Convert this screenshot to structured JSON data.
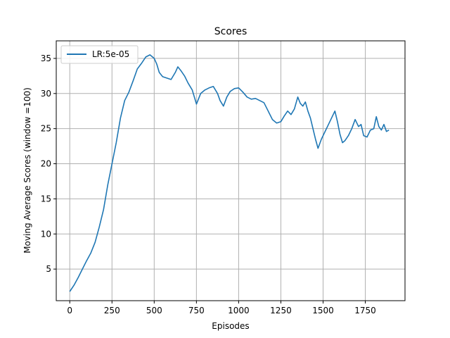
{
  "chart_data": {
    "type": "line",
    "title": "Scores",
    "xlabel": "Episodes",
    "ylabel": "Moving Average Scores (window =100)",
    "xlim": [
      -80,
      1985
    ],
    "ylim": [
      0.5,
      37.5
    ],
    "xticks": [
      0,
      250,
      500,
      750,
      1000,
      1250,
      1500,
      1750
    ],
    "yticks": [
      5,
      10,
      15,
      20,
      25,
      30,
      35
    ],
    "grid": true,
    "legend_position": "top-left",
    "series": [
      {
        "name": "LR:5e-05",
        "color": "#1f77b4",
        "x": [
          0,
          25,
          50,
          75,
          100,
          125,
          150,
          175,
          200,
          225,
          250,
          275,
          300,
          325,
          350,
          375,
          400,
          425,
          450,
          475,
          500,
          515,
          530,
          550,
          575,
          600,
          625,
          640,
          660,
          680,
          700,
          725,
          750,
          775,
          800,
          825,
          850,
          875,
          890,
          910,
          930,
          950,
          975,
          1000,
          1025,
          1050,
          1075,
          1100,
          1125,
          1150,
          1175,
          1200,
          1225,
          1250,
          1270,
          1290,
          1310,
          1330,
          1350,
          1365,
          1380,
          1395,
          1410,
          1425,
          1440,
          1455,
          1470,
          1490,
          1510,
          1530,
          1550,
          1570,
          1585,
          1600,
          1615,
          1630,
          1650,
          1670,
          1690,
          1710,
          1725,
          1740,
          1760,
          1780,
          1800,
          1815,
          1830,
          1845,
          1860,
          1875,
          1890
        ],
        "y": [
          1.8,
          2.7,
          3.8,
          5.0,
          6.2,
          7.3,
          8.8,
          11.0,
          13.5,
          17.0,
          20.0,
          23.0,
          26.5,
          29.0,
          30.2,
          31.8,
          33.5,
          34.3,
          35.2,
          35.5,
          35.0,
          34.2,
          33.0,
          32.4,
          32.2,
          32.0,
          33.0,
          33.8,
          33.2,
          32.5,
          31.5,
          30.5,
          28.5,
          30.0,
          30.5,
          30.8,
          31.0,
          30.0,
          29.0,
          28.2,
          29.5,
          30.3,
          30.7,
          30.8,
          30.2,
          29.5,
          29.2,
          29.3,
          29.0,
          28.7,
          27.5,
          26.3,
          25.8,
          26.0,
          26.8,
          27.5,
          27.0,
          27.8,
          29.5,
          28.6,
          28.2,
          28.8,
          27.5,
          26.5,
          25.0,
          23.5,
          22.2,
          23.5,
          24.5,
          25.5,
          26.5,
          27.5,
          26.0,
          24.2,
          23.0,
          23.3,
          24.0,
          25.0,
          26.3,
          25.3,
          25.6,
          24.0,
          23.8,
          24.8,
          25.0,
          26.7,
          25.3,
          24.8,
          25.6,
          24.6,
          24.8
        ]
      }
    ]
  }
}
